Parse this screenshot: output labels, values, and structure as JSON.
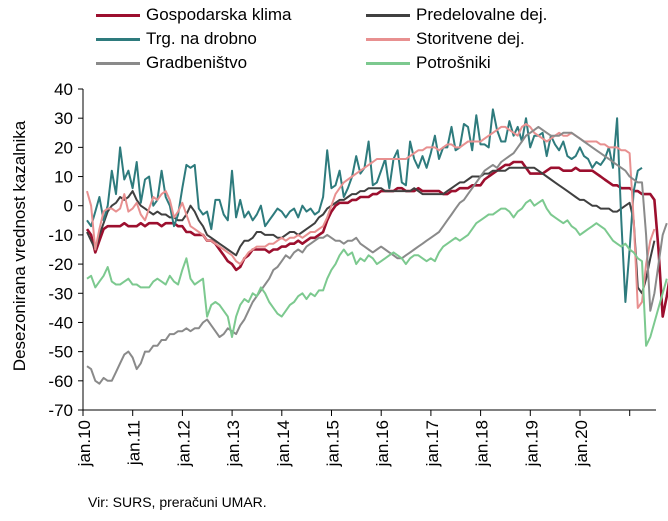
{
  "chart_data": {
    "type": "line",
    "ylabel": "Desezonirana vrednost kazalnika",
    "ylim": [
      -70,
      40
    ],
    "yticks": [
      40,
      30,
      20,
      10,
      0,
      -10,
      -20,
      -30,
      -40,
      -50,
      -60,
      -70
    ],
    "x_tick_labels": [
      "jan.10",
      "jan.11",
      "jan.12",
      "jan.13",
      "jan.14",
      "jan.15",
      "jan.16",
      "jan.17",
      "jan.18",
      "jan.19",
      "jan.20"
    ],
    "x_range": [
      "jan.10",
      "sep.20"
    ],
    "grid": false,
    "legend_position": "top",
    "series": [
      {
        "name": "Gospodarska klima",
        "color": "#9c0f2e",
        "values": [
          -8,
          -10,
          -16,
          -12,
          -8,
          -7,
          -7,
          -7,
          -7,
          -6,
          -7,
          -7,
          -7,
          -6,
          -7,
          -6,
          -6,
          -6,
          -7,
          -6,
          -6,
          -6,
          -7,
          -7,
          -9,
          -9,
          -10,
          -10,
          -10,
          -12,
          -12,
          -13,
          -15,
          -17,
          -19,
          -20,
          -22,
          -21,
          -18,
          -17,
          -15,
          -15,
          -15,
          -15,
          -16,
          -15,
          -15,
          -14,
          -14,
          -13,
          -13,
          -12,
          -13,
          -12,
          -11,
          -11,
          -10,
          -9,
          -5,
          -2,
          0,
          1,
          1,
          1,
          2,
          2,
          3,
          3,
          3,
          4,
          4,
          5,
          5,
          5,
          5,
          6,
          6,
          5,
          5,
          5,
          6,
          5,
          5,
          5,
          5,
          5,
          4,
          4,
          5,
          5,
          6,
          6,
          6,
          7,
          7,
          7,
          9,
          10,
          11,
          12,
          13,
          14,
          14,
          15,
          15,
          15,
          13,
          11,
          11,
          11,
          11,
          12,
          13,
          13,
          13,
          12,
          12,
          12,
          13,
          12,
          12,
          12,
          12,
          11,
          10,
          9,
          8,
          7,
          7,
          6,
          6,
          6,
          5,
          5,
          4,
          4,
          4,
          2,
          -15,
          -38,
          -31,
          -22,
          -15,
          -10
        ]
      },
      {
        "name": "Predelovalne dej.",
        "color": "#404040",
        "values": [
          -9,
          -12,
          -15,
          -10,
          -6,
          -2,
          0,
          1,
          3,
          2,
          3,
          5,
          2,
          0,
          -1,
          -2,
          -3,
          -2,
          -3,
          -3,
          -4,
          -4,
          -5,
          -5,
          -3,
          0,
          -2,
          -5,
          -7,
          -10,
          -11,
          -12,
          -13,
          -14,
          -15,
          -16,
          -17,
          -14,
          -12,
          -12,
          -11,
          -9,
          -9,
          -10,
          -10,
          -10,
          -11,
          -11,
          -10,
          -9,
          -9,
          -10,
          -9,
          -8,
          -7,
          -6,
          -4,
          -3,
          -1,
          0,
          1,
          2,
          2,
          3,
          4,
          4,
          5,
          5,
          6,
          6,
          6,
          6,
          5,
          5,
          5,
          5,
          5,
          5,
          5,
          6,
          5,
          4,
          4,
          4,
          4,
          4,
          4,
          5,
          6,
          7,
          8,
          8,
          9,
          10,
          10,
          10,
          11,
          11,
          12,
          12,
          12,
          12,
          13,
          13,
          13,
          13,
          13,
          13,
          13,
          12,
          11,
          10,
          9,
          8,
          7,
          6,
          5,
          4,
          3,
          2,
          2,
          1,
          0,
          0,
          -1,
          -1,
          -1,
          -2,
          -2,
          -1,
          0,
          1,
          -5,
          -28,
          -30,
          -25,
          -18,
          -12
        ]
      },
      {
        "name": "Trg. na drobno",
        "color": "#2e7b7d",
        "values": [
          -5,
          -7,
          -2,
          3,
          -5,
          0,
          12,
          4,
          20,
          9,
          12,
          6,
          15,
          1,
          9,
          10,
          0,
          2,
          12,
          3,
          0,
          -7,
          -3,
          6,
          14,
          13,
          14,
          -1,
          -3,
          -2,
          -8,
          2,
          2,
          -3,
          -5,
          12,
          -4,
          2,
          -4,
          -2,
          -5,
          -3,
          0,
          -7,
          -5,
          -3,
          -1,
          -2,
          -4,
          -2,
          -1,
          -4,
          0,
          -2,
          -1,
          -3,
          -2,
          3,
          19,
          6,
          7,
          12,
          3,
          6,
          10,
          17,
          11,
          13,
          22,
          7,
          8,
          12,
          16,
          6,
          16,
          19,
          8,
          7,
          22,
          16,
          13,
          17,
          13,
          18,
          24,
          16,
          20,
          20,
          27,
          19,
          20,
          28,
          27,
          19,
          31,
          21,
          21,
          20,
          33,
          26,
          22,
          22,
          29,
          24,
          27,
          22,
          30,
          20,
          24,
          24,
          25,
          17,
          24,
          21,
          19,
          22,
          17,
          16,
          17,
          20,
          17,
          16,
          13,
          15,
          14,
          16,
          20,
          13,
          30,
          -5,
          -33,
          -15,
          5,
          12,
          13
        ]
      },
      {
        "name": "Storitvene dej.",
        "color": "#e89090",
        "values": [
          5,
          0,
          -15,
          -8,
          -2,
          -1,
          -1,
          -2,
          -1,
          4,
          -2,
          -1,
          1,
          -3,
          -5,
          -1,
          3,
          2,
          4,
          5,
          2,
          -4,
          -2,
          1,
          -3,
          -7,
          -8,
          -9,
          -10,
          -12,
          -12,
          -13,
          -14,
          -15,
          -16,
          -17,
          -19,
          -20,
          -18,
          -16,
          -15,
          -14,
          -14,
          -14,
          -13,
          -13,
          -12,
          -11,
          -12,
          -11,
          -11,
          -10,
          -11,
          -10,
          -9,
          -9,
          -8,
          -7,
          -4,
          0,
          4,
          6,
          8,
          9,
          10,
          11,
          12,
          13,
          14,
          15,
          16,
          16,
          16,
          16,
          16,
          16,
          16,
          16,
          17,
          18,
          19,
          19,
          20,
          20,
          20,
          19,
          20,
          21,
          21,
          20,
          20,
          21,
          22,
          22,
          22,
          22,
          23,
          24,
          25,
          26,
          27,
          27,
          26,
          25,
          24,
          27,
          28,
          27,
          25,
          24,
          23,
          22,
          23,
          24,
          25,
          24,
          24,
          25,
          24,
          23,
          22,
          22,
          22,
          22,
          21,
          21,
          20,
          20,
          20,
          19,
          19,
          18,
          -5,
          -35,
          -33,
          -20,
          -12,
          -8
        ]
      },
      {
        "name": "Gradbeništvo",
        "color": "#8a8a8a",
        "values": [
          -55,
          -56,
          -60,
          -61,
          -59,
          -60,
          -60,
          -57,
          -54,
          -51,
          -50,
          -52,
          -56,
          -54,
          -50,
          -50,
          -48,
          -48,
          -46,
          -46,
          -44,
          -44,
          -43,
          -43,
          -42,
          -43,
          -42,
          -42,
          -40,
          -39,
          -41,
          -43,
          -45,
          -44,
          -42,
          -43,
          -44,
          -41,
          -39,
          -36,
          -33,
          -31,
          -29,
          -27,
          -25,
          -22,
          -21,
          -19,
          -17,
          -18,
          -16,
          -15,
          -16,
          -14,
          -13,
          -12,
          -11,
          -11,
          -10,
          -11,
          -12,
          -12,
          -13,
          -12,
          -12,
          -11,
          -13,
          -14,
          -15,
          -16,
          -15,
          -14,
          -15,
          -16,
          -17,
          -18,
          -18,
          -17,
          -16,
          -15,
          -14,
          -13,
          -12,
          -11,
          -10,
          -9,
          -7,
          -5,
          -3,
          -1,
          1,
          2,
          4,
          6,
          8,
          10,
          12,
          13,
          14,
          13,
          15,
          16,
          17,
          18,
          20,
          22,
          24,
          25,
          26,
          27,
          26,
          25,
          24,
          24,
          24,
          25,
          25,
          25,
          24,
          23,
          22,
          21,
          20,
          19,
          18,
          17,
          16,
          15,
          14,
          13,
          12,
          10,
          9,
          8,
          8,
          -10,
          -36,
          -30,
          -20,
          -10,
          -6
        ]
      },
      {
        "name": "Potrošniki",
        "color": "#7cc98f",
        "values": [
          -25,
          -24,
          -28,
          -26,
          -24,
          -21,
          -26,
          -27,
          -27,
          -26,
          -25,
          -27,
          -27,
          -28,
          -28,
          -28,
          -26,
          -25,
          -26,
          -27,
          -24,
          -26,
          -27,
          -22,
          -18,
          -25,
          -27,
          -26,
          -25,
          -38,
          -34,
          -33,
          -34,
          -36,
          -38,
          -45,
          -38,
          -34,
          -32,
          -33,
          -30,
          -31,
          -28,
          -30,
          -33,
          -35,
          -37,
          -38,
          -36,
          -34,
          -33,
          -31,
          -30,
          -32,
          -30,
          -31,
          -29,
          -29,
          -25,
          -22,
          -20,
          -17,
          -15,
          -17,
          -16,
          -20,
          -18,
          -19,
          -17,
          -18,
          -20,
          -19,
          -18,
          -17,
          -16,
          -17,
          -18,
          -20,
          -18,
          -17,
          -17,
          -18,
          -19,
          -18,
          -19,
          -16,
          -14,
          -13,
          -12,
          -11,
          -12,
          -11,
          -10,
          -8,
          -6,
          -5,
          -4,
          -3,
          -3,
          -2,
          -1,
          -1,
          -2,
          -4,
          -2,
          -1,
          1,
          2,
          0,
          1,
          2,
          -1,
          -3,
          -4,
          -5,
          -6,
          -5,
          -7,
          -8,
          -10,
          -9,
          -8,
          -7,
          -6,
          -7,
          -8,
          -10,
          -12,
          -13,
          -14,
          -13,
          -15,
          -16,
          -18,
          -19,
          -48,
          -45,
          -40,
          -35,
          -30,
          -25
        ]
      }
    ]
  },
  "source": "Vir: SURS, preračuni UMAR."
}
